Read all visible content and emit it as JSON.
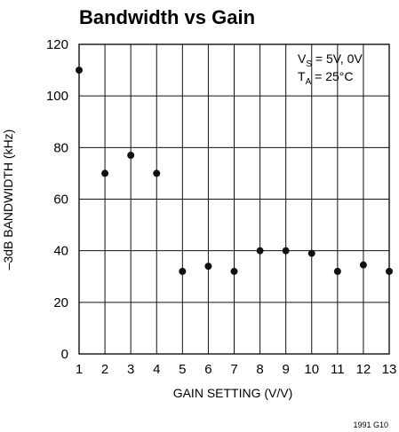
{
  "chart_data": {
    "type": "scatter",
    "title": "Bandwidth vs Gain",
    "xlabel": "GAIN SETTING (V/V)",
    "ylabel": "–3dB BANDWIDTH (kHz)",
    "x": [
      1,
      2,
      3,
      4,
      5,
      6,
      7,
      8,
      9,
      10,
      11,
      12,
      13
    ],
    "y": [
      110,
      70,
      77,
      70,
      32,
      34,
      32,
      40,
      40,
      39,
      32,
      34.5,
      32
    ],
    "xlim": [
      1,
      13
    ],
    "ylim": [
      0,
      120
    ],
    "xticks": [
      "1",
      "2",
      "3",
      "4",
      "5",
      "6",
      "7",
      "8",
      "9",
      "10",
      "11",
      "12",
      "13"
    ],
    "yticks": [
      "0",
      "20",
      "40",
      "60",
      "80",
      "100",
      "120"
    ],
    "grid": true,
    "annotations": {
      "vs_main": "V",
      "vs_sub": "S",
      "vs_rest": " = 5V, 0V",
      "ta_main": "T",
      "ta_sub": "A",
      "ta_rest": " = 25°C"
    },
    "figure_id": "1991 G10",
    "colors": {
      "grid": "#111111",
      "marker": "#111111"
    }
  }
}
